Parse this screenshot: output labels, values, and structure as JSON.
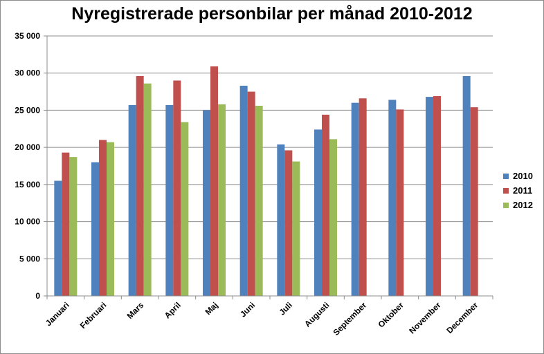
{
  "chart_data": {
    "type": "bar",
    "title": "Nyregistrerade personbilar per månad 2010-2012",
    "xlabel": "",
    "ylabel": "",
    "ylim": [
      0,
      35000
    ],
    "yticks": [
      0,
      5000,
      10000,
      15000,
      20000,
      25000,
      30000,
      35000
    ],
    "ytick_labels": [
      "0",
      "5 000",
      "10 000",
      "15 000",
      "20 000",
      "25 000",
      "30 000",
      "35 000"
    ],
    "grid": true,
    "legend_position": "right",
    "categories": [
      "Januari",
      "Februari",
      "Mars",
      "April",
      "Maj",
      "Juni",
      "Juli",
      "Augusti",
      "September",
      "Oktober",
      "November",
      "December"
    ],
    "series": [
      {
        "name": "2010",
        "color": "#4f81bd",
        "values": [
          15500,
          18000,
          25700,
          25700,
          25000,
          28300,
          20400,
          22400,
          26000,
          26400,
          26800,
          29600
        ]
      },
      {
        "name": "2011",
        "color": "#c0504d",
        "values": [
          19300,
          21000,
          29600,
          29000,
          30900,
          27500,
          19600,
          24400,
          26600,
          25100,
          26900,
          25400
        ]
      },
      {
        "name": "2012",
        "color": "#9bbb59",
        "values": [
          18700,
          20700,
          28600,
          23400,
          25800,
          25600,
          18100,
          21100,
          null,
          null,
          null,
          null
        ]
      }
    ]
  }
}
